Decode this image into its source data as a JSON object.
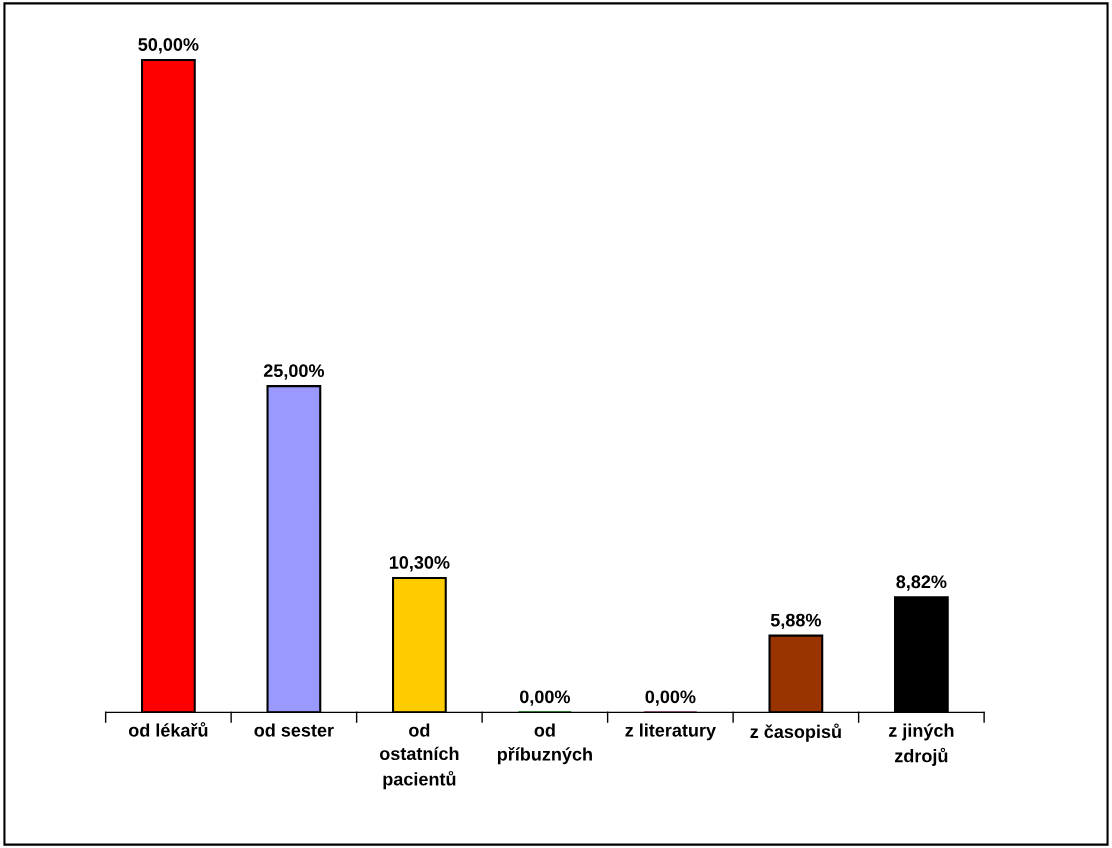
{
  "chart_data": {
    "type": "bar",
    "categories": [
      "od lékařů",
      "od sester",
      "od\nostatních\npacientů",
      "od\npříbuzných",
      "z literatury",
      "z časopisů",
      "z jiných\nzdrojů"
    ],
    "values": [
      50.0,
      25.0,
      10.3,
      0.0,
      0.0,
      5.88,
      8.82
    ],
    "colors": [
      "#ff0000",
      "#9999ff",
      "#ffcc00",
      "#008000",
      "#993366",
      "#993300",
      "#000000"
    ],
    "value_labels": [
      "50,00%",
      "25,00%",
      "10,30%",
      "0,00%",
      "0,00%",
      "5,88%",
      "8,82%"
    ],
    "grid": false
  }
}
